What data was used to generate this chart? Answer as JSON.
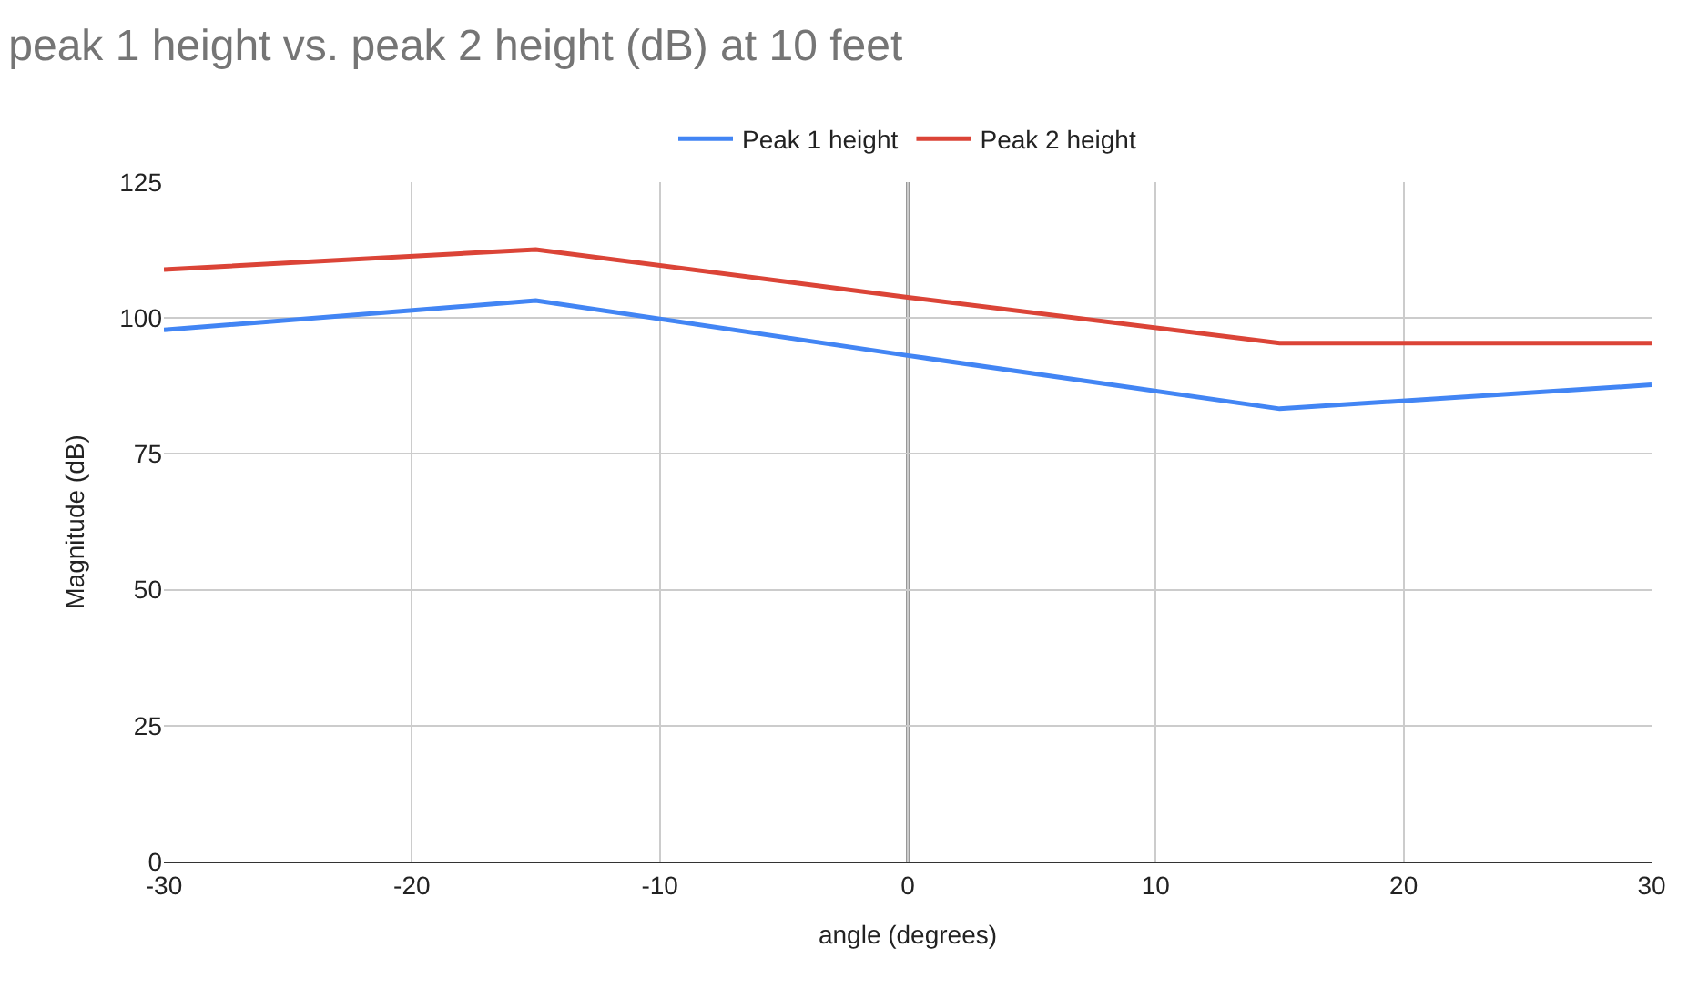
{
  "chart_data": {
    "type": "line",
    "title": "peak 1 height vs. peak 2 height (dB) at 10 feet",
    "xlabel": "angle (degrees)",
    "ylabel": "Magnitude (dB)",
    "x": [
      -30,
      -15,
      0,
      15,
      30
    ],
    "series": [
      {
        "name": "Peak 1 height",
        "color": "#4285f4",
        "values": [
          97.8,
          103.2,
          93.1,
          83.3,
          87.7
        ]
      },
      {
        "name": "Peak 2 height",
        "color": "#db4437",
        "values": [
          108.9,
          112.6,
          103.8,
          95.4,
          95.4
        ]
      }
    ],
    "xlim": [
      -30,
      30
    ],
    "xticks": [
      -30,
      -20,
      -10,
      0,
      10,
      20,
      30
    ],
    "ylim": [
      0,
      125
    ],
    "yticks": [
      0,
      25,
      50,
      75,
      100,
      125
    ],
    "ref_lines": [
      {
        "axis": "x",
        "value": 0,
        "color": "#333333"
      }
    ],
    "grid": true,
    "legend": "top",
    "marker": "none",
    "line_style": "solid"
  }
}
